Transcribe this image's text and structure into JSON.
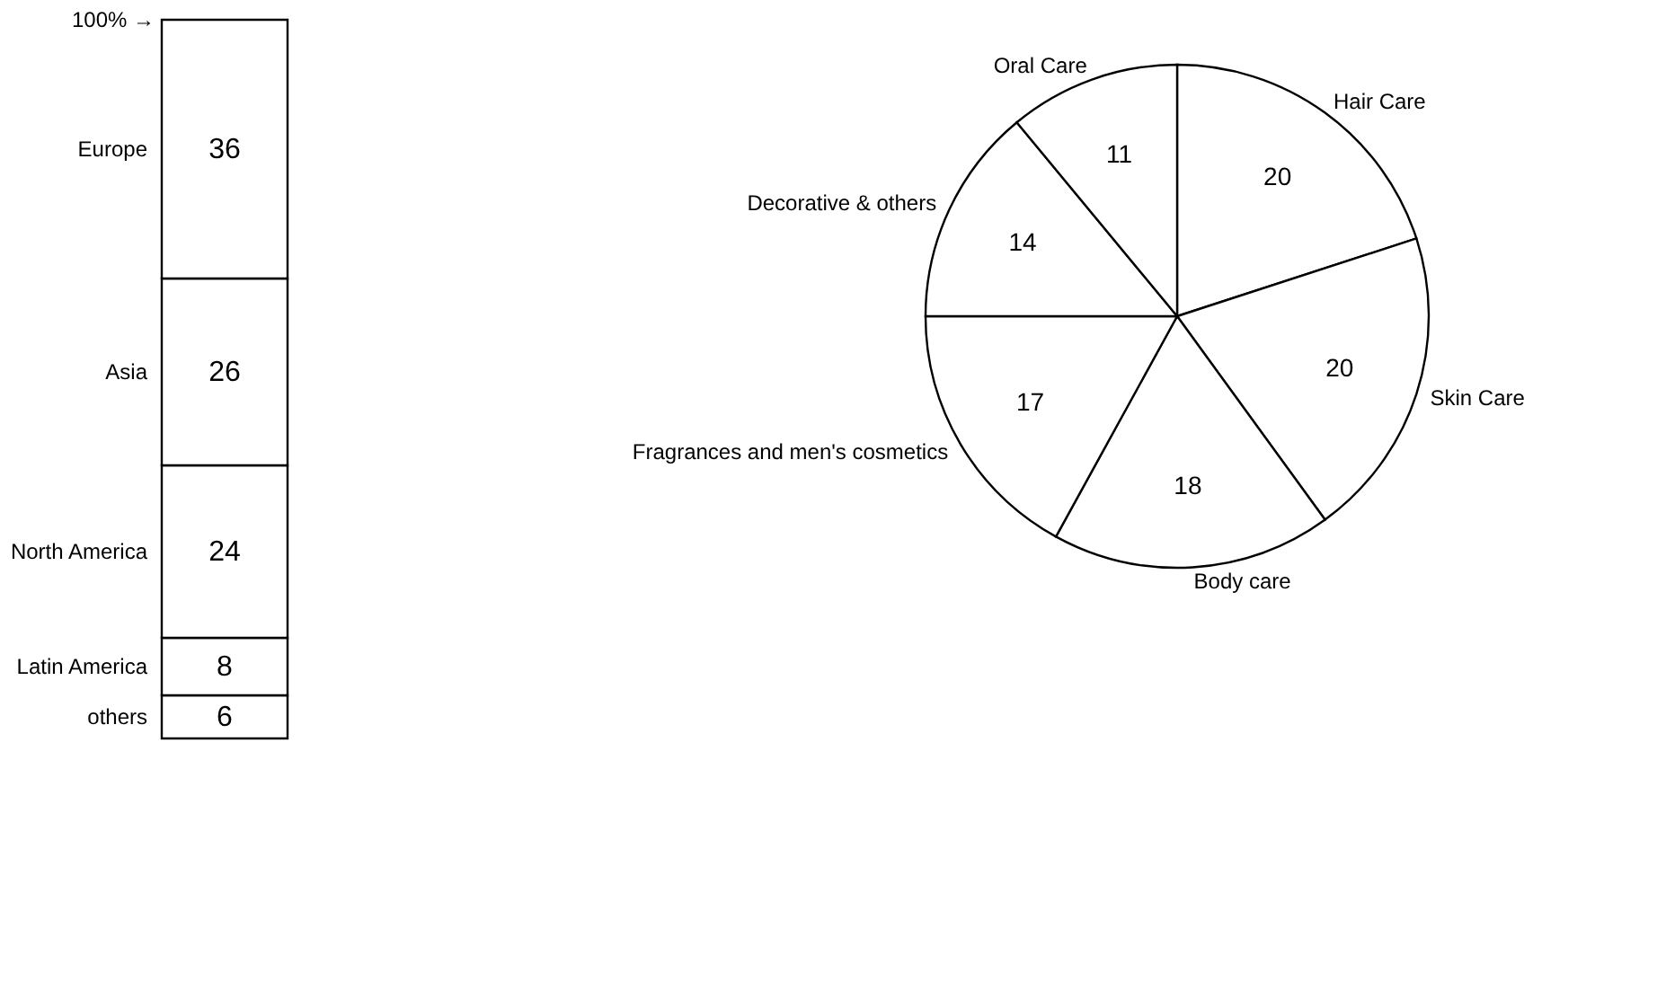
{
  "chart_data": [
    {
      "type": "bar",
      "stacked": true,
      "categories": [
        null
      ],
      "ylim": [
        0,
        100
      ],
      "tick_labels": false,
      "data_labels": true,
      "series": [
        {
          "name": "others",
          "color": "#ffffff",
          "values": [
            6
          ]
        },
        {
          "name": "Latin America",
          "color": "#ffffff",
          "values": [
            8
          ]
        },
        {
          "name": "North America",
          "color": "#ffffff",
          "values": [
            24
          ]
        },
        {
          "name": "Asia",
          "color": "#ffffff",
          "values": [
            26
          ]
        },
        {
          "name": "Europe",
          "color": "#ffffff",
          "values": [
            36
          ]
        }
      ],
      "annotations": [
        "100% →"
      ]
    },
    {
      "type": "pie",
      "data_labels": true,
      "categories": [
        "Hair Care",
        "Skin Care",
        "Body care",
        "Fragrances and men's cosmetics",
        "Decorative & others",
        "Oral Care"
      ],
      "values": [
        20,
        20,
        18,
        17,
        14,
        11
      ],
      "colors": [
        "#ffffff",
        "#ffffff",
        "#ffffff",
        "#ffffff",
        "#ffffff",
        "#ffffff"
      ]
    }
  ]
}
